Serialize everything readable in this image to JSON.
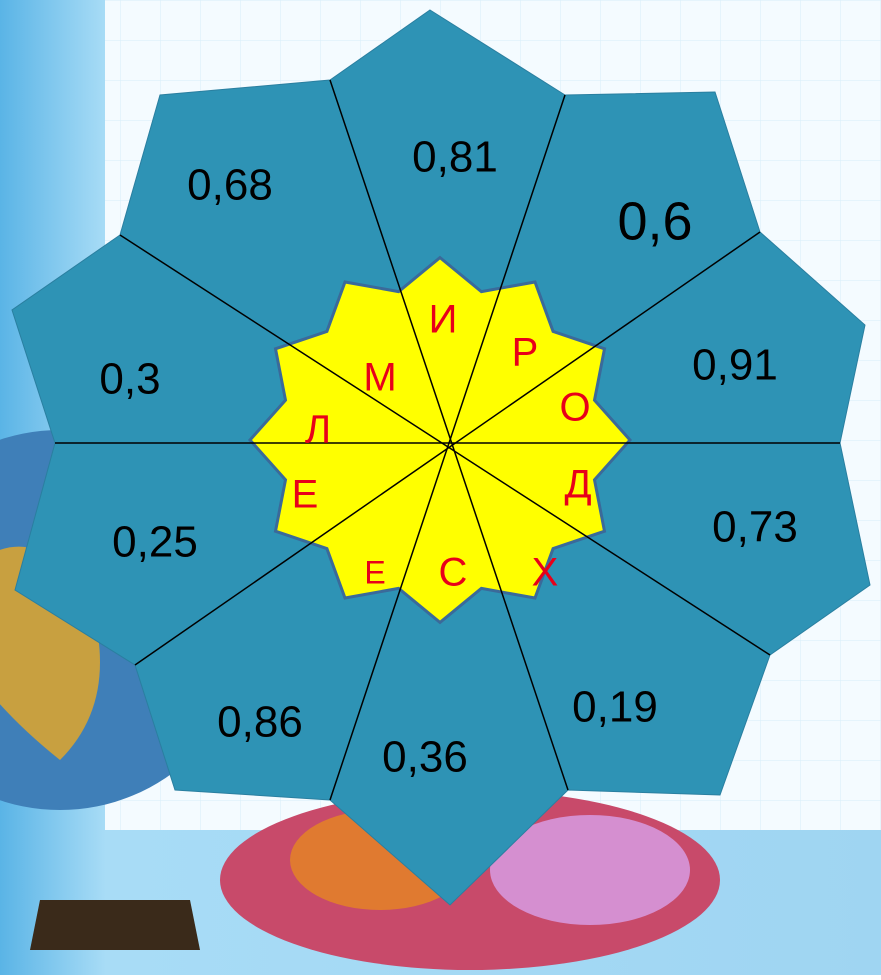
{
  "puzzle": {
    "numbers": [
      "0,81",
      "0,6",
      "0,91",
      "0,73",
      "0,19",
      "0,36",
      "0,86",
      "0,25",
      "0,3",
      "0,68"
    ],
    "letters": [
      "И",
      "Р",
      "О",
      "Д",
      "Х",
      "С",
      "Е",
      "Е",
      "Л",
      "М"
    ]
  }
}
